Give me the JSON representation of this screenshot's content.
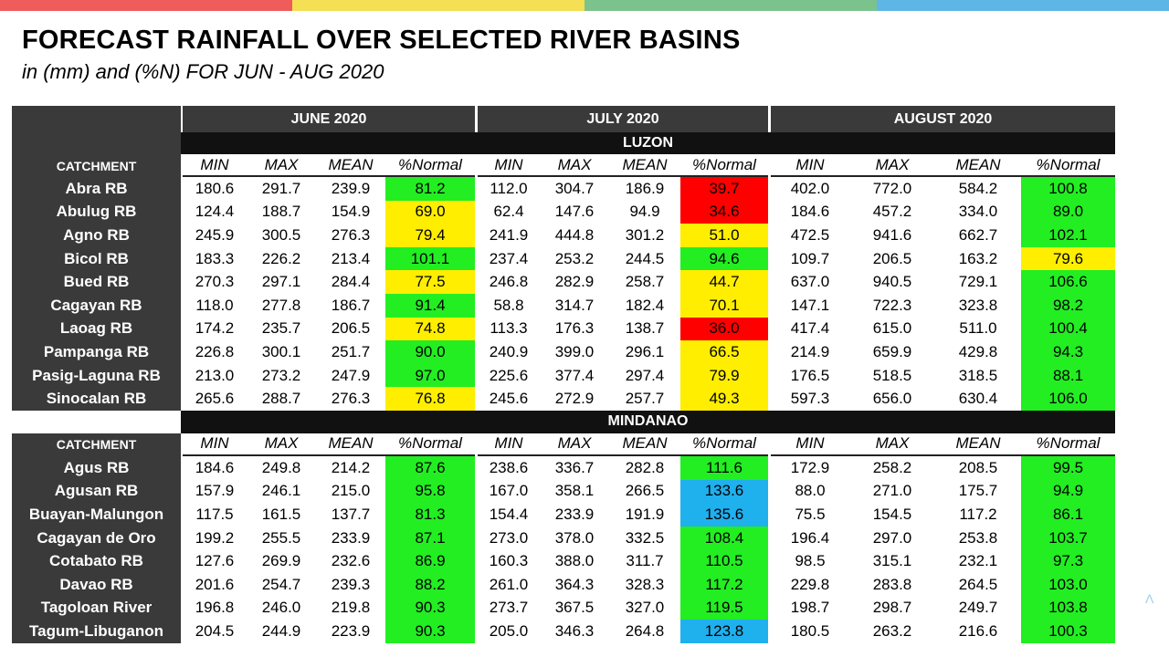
{
  "title": "FORECAST RAINFALL OVER SELECTED RIVER BASINS",
  "subtitle": "in (mm) and (%N) FOR JUN - AUG 2020",
  "colors": {
    "topbar": [
      "#f05b5b",
      "#f4df55",
      "#7cc28c",
      "#5db6e5"
    ],
    "green": "#22ee22",
    "yellow": "#ffee00",
    "red": "#ff0000",
    "blue": "#1fb0ee",
    "header_grey": "#3a3a3a",
    "region_black": "#111111"
  },
  "table": {
    "months": [
      "JUNE 2020",
      "JULY 2020",
      "AUGUST 2020"
    ],
    "catchment_label": "CATCHMENT",
    "subheaders": [
      "MIN",
      "MAX",
      "MEAN",
      "%Normal"
    ],
    "regions": [
      {
        "name": "LUZON",
        "rows": [
          {
            "name": "Abra RB",
            "cells": [
              [
                "180.6",
                "291.7",
                "239.9",
                "81.2",
                "g"
              ],
              [
                "112.0",
                "304.7",
                "186.9",
                "39.7",
                "r"
              ],
              [
                "402.0",
                "772.0",
                "584.2",
                "100.8",
                "g"
              ]
            ]
          },
          {
            "name": "Abulug RB",
            "cells": [
              [
                "124.4",
                "188.7",
                "154.9",
                "69.0",
                "y"
              ],
              [
                "62.4",
                "147.6",
                "94.9",
                "34.6",
                "r"
              ],
              [
                "184.6",
                "457.2",
                "334.0",
                "89.0",
                "g"
              ]
            ]
          },
          {
            "name": "Agno RB",
            "cells": [
              [
                "245.9",
                "300.5",
                "276.3",
                "79.4",
                "y"
              ],
              [
                "241.9",
                "444.8",
                "301.2",
                "51.0",
                "y"
              ],
              [
                "472.5",
                "941.6",
                "662.7",
                "102.1",
                "g"
              ]
            ]
          },
          {
            "name": "Bicol RB",
            "cells": [
              [
                "183.3",
                "226.2",
                "213.4",
                "101.1",
                "g"
              ],
              [
                "237.4",
                "253.2",
                "244.5",
                "94.6",
                "g"
              ],
              [
                "109.7",
                "206.5",
                "163.2",
                "79.6",
                "y"
              ]
            ]
          },
          {
            "name": "Bued RB",
            "cells": [
              [
                "270.3",
                "297.1",
                "284.4",
                "77.5",
                "y"
              ],
              [
                "246.8",
                "282.9",
                "258.7",
                "44.7",
                "y"
              ],
              [
                "637.0",
                "940.5",
                "729.1",
                "106.6",
                "g"
              ]
            ]
          },
          {
            "name": "Cagayan RB",
            "cells": [
              [
                "118.0",
                "277.8",
                "186.7",
                "91.4",
                "g"
              ],
              [
                "58.8",
                "314.7",
                "182.4",
                "70.1",
                "y"
              ],
              [
                "147.1",
                "722.3",
                "323.8",
                "98.2",
                "g"
              ]
            ]
          },
          {
            "name": "Laoag RB",
            "cells": [
              [
                "174.2",
                "235.7",
                "206.5",
                "74.8",
                "y"
              ],
              [
                "113.3",
                "176.3",
                "138.7",
                "36.0",
                "r"
              ],
              [
                "417.4",
                "615.0",
                "511.0",
                "100.4",
                "g"
              ]
            ]
          },
          {
            "name": "Pampanga RB",
            "cells": [
              [
                "226.8",
                "300.1",
                "251.7",
                "90.0",
                "g"
              ],
              [
                "240.9",
                "399.0",
                "296.1",
                "66.5",
                "y"
              ],
              [
                "214.9",
                "659.9",
                "429.8",
                "94.3",
                "g"
              ]
            ]
          },
          {
            "name": "Pasig-Laguna RB",
            "cells": [
              [
                "213.0",
                "273.2",
                "247.9",
                "97.0",
                "g"
              ],
              [
                "225.6",
                "377.4",
                "297.4",
                "79.9",
                "y"
              ],
              [
                "176.5",
                "518.5",
                "318.5",
                "88.1",
                "g"
              ]
            ]
          },
          {
            "name": "Sinocalan RB",
            "cells": [
              [
                "265.6",
                "288.7",
                "276.3",
                "76.8",
                "y"
              ],
              [
                "245.6",
                "272.9",
                "257.7",
                "49.3",
                "y"
              ],
              [
                "597.3",
                "656.0",
                "630.4",
                "106.0",
                "g"
              ]
            ]
          }
        ]
      },
      {
        "name": "MINDANAO",
        "rows": [
          {
            "name": "Agus RB",
            "cells": [
              [
                "184.6",
                "249.8",
                "214.2",
                "87.6",
                "g"
              ],
              [
                "238.6",
                "336.7",
                "282.8",
                "111.6",
                "g"
              ],
              [
                "172.9",
                "258.2",
                "208.5",
                "99.5",
                "g"
              ]
            ]
          },
          {
            "name": "Agusan RB",
            "cells": [
              [
                "157.9",
                "246.1",
                "215.0",
                "95.8",
                "g"
              ],
              [
                "167.0",
                "358.1",
                "266.5",
                "133.6",
                "b"
              ],
              [
                "88.0",
                "271.0",
                "175.7",
                "94.9",
                "g"
              ]
            ]
          },
          {
            "name": "Buayan-Malungon",
            "cells": [
              [
                "117.5",
                "161.5",
                "137.7",
                "81.3",
                "g"
              ],
              [
                "154.4",
                "233.9",
                "191.9",
                "135.6",
                "b"
              ],
              [
                "75.5",
                "154.5",
                "117.2",
                "86.1",
                "g"
              ]
            ]
          },
          {
            "name": "Cagayan de Oro",
            "cells": [
              [
                "199.2",
                "255.5",
                "233.9",
                "87.1",
                "g"
              ],
              [
                "273.0",
                "378.0",
                "332.5",
                "108.4",
                "g"
              ],
              [
                "196.4",
                "297.0",
                "253.8",
                "103.7",
                "g"
              ]
            ]
          },
          {
            "name": "Cotabato RB",
            "cells": [
              [
                "127.6",
                "269.9",
                "232.6",
                "86.9",
                "g"
              ],
              [
                "160.3",
                "388.0",
                "311.7",
                "110.5",
                "g"
              ],
              [
                "98.5",
                "315.1",
                "232.1",
                "97.3",
                "g"
              ]
            ]
          },
          {
            "name": "Davao RB",
            "cells": [
              [
                "201.6",
                "254.7",
                "239.3",
                "88.2",
                "g"
              ],
              [
                "261.0",
                "364.3",
                "328.3",
                "117.2",
                "g"
              ],
              [
                "229.8",
                "283.8",
                "264.5",
                "103.0",
                "g"
              ]
            ]
          },
          {
            "name": "Tagoloan River",
            "cells": [
              [
                "196.8",
                "246.0",
                "219.8",
                "90.3",
                "g"
              ],
              [
                "273.7",
                "367.5",
                "327.0",
                "119.5",
                "g"
              ],
              [
                "198.7",
                "298.7",
                "249.7",
                "103.8",
                "g"
              ]
            ]
          },
          {
            "name": "Tagum-Libuganon",
            "cells": [
              [
                "204.5",
                "244.9",
                "223.9",
                "90.3",
                "g"
              ],
              [
                "205.0",
                "346.3",
                "264.8",
                "123.8",
                "b"
              ],
              [
                "180.5",
                "263.2",
                "216.6",
                "100.3",
                "g"
              ]
            ]
          }
        ]
      }
    ]
  }
}
